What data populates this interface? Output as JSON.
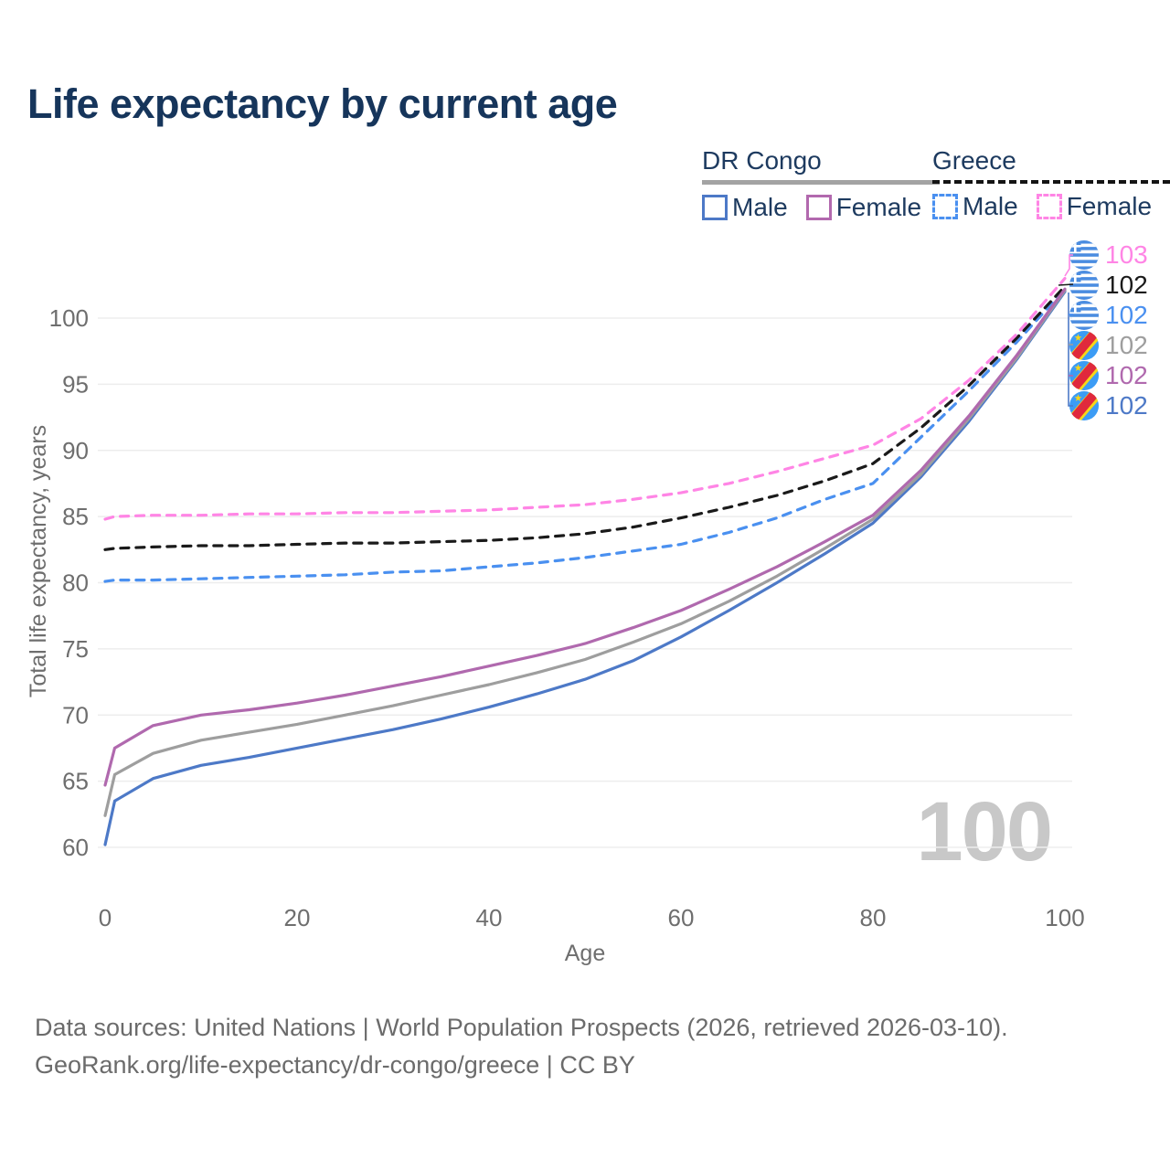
{
  "title": "Life expectancy by current age",
  "legend": {
    "groups": [
      {
        "country": "DR Congo",
        "line_style": "solid",
        "underline_color": "#a3a3a3",
        "items": [
          {
            "label": "Male",
            "color": "#4d79c7"
          },
          {
            "label": "Female",
            "color": "#b269ae"
          }
        ]
      },
      {
        "country": "Greece",
        "line_style": "dashed",
        "underline_color": "#141414",
        "items": [
          {
            "label": "Male",
            "color": "#4a90f0"
          },
          {
            "label": "Female",
            "color": "#ff85e5"
          }
        ]
      }
    ]
  },
  "end_labels": [
    {
      "flag": "greece",
      "country": "Greece",
      "series": "Female",
      "value": "103",
      "color": "#ff85e5"
    },
    {
      "flag": "greece",
      "country": "Greece",
      "series": "Total",
      "value": "102",
      "color": "#1a1a1a"
    },
    {
      "flag": "greece",
      "country": "Greece",
      "series": "Male",
      "value": "102",
      "color": "#4a90f0"
    },
    {
      "flag": "dr-congo",
      "country": "DR Congo",
      "series": "Total",
      "value": "102",
      "color": "#9e9e9e"
    },
    {
      "flag": "dr-congo",
      "country": "DR Congo",
      "series": "Female",
      "value": "102",
      "color": "#b069ae"
    },
    {
      "flag": "dr-congo",
      "country": "DR Congo",
      "series": "Male",
      "value": "102",
      "color": "#4d79c7"
    }
  ],
  "watermark": "100",
  "footer": {
    "line1": "Data sources: United Nations | World Population Prospects (2026, retrieved 2026-03-10).",
    "line2": "GeoRank.org/life-expectancy/dr-congo/greece | CC BY"
  },
  "chart_data": {
    "type": "line",
    "title": "Life expectancy by current age",
    "xlabel": "Age",
    "ylabel": "Total life expectancy, years",
    "x_ticks": [
      0,
      20,
      40,
      60,
      80,
      100
    ],
    "y_ticks": [
      60,
      65,
      70,
      75,
      80,
      85,
      90,
      95,
      100
    ],
    "xlim": [
      0,
      100
    ],
    "ylim": [
      59.5,
      103.5
    ],
    "grid": "horizontal",
    "legend_position": "top-right",
    "ages": [
      0,
      1,
      5,
      10,
      15,
      20,
      25,
      30,
      35,
      40,
      45,
      50,
      55,
      60,
      65,
      70,
      75,
      80,
      85,
      90,
      95,
      100
    ],
    "series": [
      {
        "name": "Greece Male",
        "country": "Greece",
        "color": "#4a90f0",
        "dash": true,
        "values": [
          80.1,
          80.2,
          80.2,
          80.3,
          80.4,
          80.5,
          80.6,
          80.8,
          80.9,
          81.2,
          81.5,
          81.9,
          82.4,
          82.9,
          83.8,
          84.9,
          86.3,
          87.5,
          91.0,
          94.5,
          98.2,
          102.2
        ]
      },
      {
        "name": "Greece Total",
        "country": "Greece",
        "color": "#1a1a1a",
        "dash": true,
        "values": [
          82.5,
          82.6,
          82.7,
          82.8,
          82.8,
          82.9,
          83.0,
          83.0,
          83.1,
          83.2,
          83.4,
          83.7,
          84.2,
          84.9,
          85.7,
          86.6,
          87.7,
          89.0,
          91.7,
          94.9,
          98.5,
          102.4
        ]
      },
      {
        "name": "Greece Female",
        "country": "Greece",
        "color": "#ff85e5",
        "dash": true,
        "values": [
          84.8,
          85.0,
          85.1,
          85.1,
          85.2,
          85.2,
          85.3,
          85.3,
          85.4,
          85.5,
          85.7,
          85.9,
          86.3,
          86.8,
          87.5,
          88.4,
          89.4,
          90.4,
          92.4,
          95.3,
          98.8,
          103.0
        ]
      },
      {
        "name": "DR Congo Male",
        "country": "DR Congo",
        "color": "#4d79c7",
        "dash": false,
        "values": [
          60.2,
          63.5,
          65.2,
          66.2,
          66.8,
          67.5,
          68.2,
          68.9,
          69.7,
          70.6,
          71.6,
          72.7,
          74.1,
          75.9,
          77.9,
          80.0,
          82.2,
          84.5,
          88.0,
          92.2,
          96.9,
          102.0
        ]
      },
      {
        "name": "DR Congo Total",
        "country": "DR Congo",
        "color": "#9e9e9e",
        "dash": false,
        "values": [
          62.4,
          65.5,
          67.1,
          68.1,
          68.7,
          69.3,
          70.0,
          70.7,
          71.5,
          72.3,
          73.2,
          74.2,
          75.5,
          76.9,
          78.6,
          80.5,
          82.6,
          84.8,
          88.2,
          92.4,
          97.0,
          102.1
        ]
      },
      {
        "name": "DR Congo Female",
        "country": "DR Congo",
        "color": "#b069ae",
        "dash": false,
        "values": [
          64.7,
          67.5,
          69.2,
          70.0,
          70.4,
          70.9,
          71.5,
          72.2,
          72.9,
          73.7,
          74.5,
          75.4,
          76.6,
          77.9,
          79.5,
          81.2,
          83.1,
          85.1,
          88.5,
          92.6,
          97.2,
          102.2
        ]
      }
    ]
  }
}
